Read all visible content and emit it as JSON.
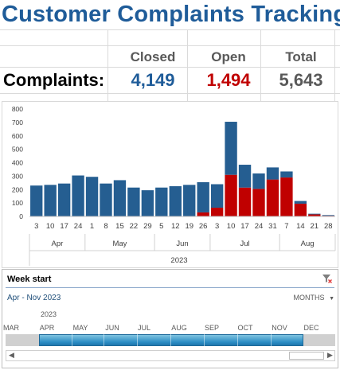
{
  "title": "Customer Complaints  Tracking",
  "summary": {
    "row_label": "Complaints:",
    "headers": [
      "Closed",
      "Open",
      "Total"
    ],
    "values": [
      "4,149",
      "1,494",
      "5,643"
    ],
    "colors": [
      "#1f5c99",
      "#c00000",
      "#595959"
    ]
  },
  "chart_data": {
    "type": "bar",
    "stacked": true,
    "ylim": [
      0,
      800
    ],
    "yticks": [
      "0",
      "100",
      "200",
      "300",
      "400",
      "500",
      "600",
      "700",
      "800"
    ],
    "categories": [
      "3",
      "10",
      "17",
      "24",
      "1",
      "8",
      "15",
      "22",
      "29",
      "5",
      "12",
      "19",
      "26",
      "3",
      "10",
      "17",
      "24",
      "31",
      "7",
      "14",
      "21",
      "28"
    ],
    "months": [
      {
        "label": "Apr",
        "count": 4
      },
      {
        "label": "May",
        "count": 5
      },
      {
        "label": "Jun",
        "count": 4
      },
      {
        "label": "Jul",
        "count": 5
      },
      {
        "label": "Aug",
        "count": 4
      }
    ],
    "year": "2023",
    "series": [
      {
        "color": "#c00000",
        "values": [
          0,
          0,
          0,
          0,
          0,
          0,
          0,
          0,
          0,
          0,
          0,
          0,
          30,
          65,
          310,
          215,
          205,
          275,
          290,
          95,
          15,
          5
        ]
      },
      {
        "color": "#255e91",
        "values": [
          230,
          235,
          245,
          305,
          295,
          245,
          270,
          215,
          195,
          215,
          225,
          235,
          225,
          175,
          395,
          170,
          115,
          90,
          45,
          20,
          5,
          5
        ]
      }
    ]
  },
  "slicer": {
    "title": "Week start",
    "range": "Apr - Nov 2023",
    "level": "MONTHS",
    "year": "2023",
    "months": [
      "MAR",
      "APR",
      "MAY",
      "JUN",
      "JUL",
      "AUG",
      "SEP",
      "OCT",
      "NOV",
      "DEC"
    ],
    "clear_filter_icon": "filter-clear-icon"
  }
}
